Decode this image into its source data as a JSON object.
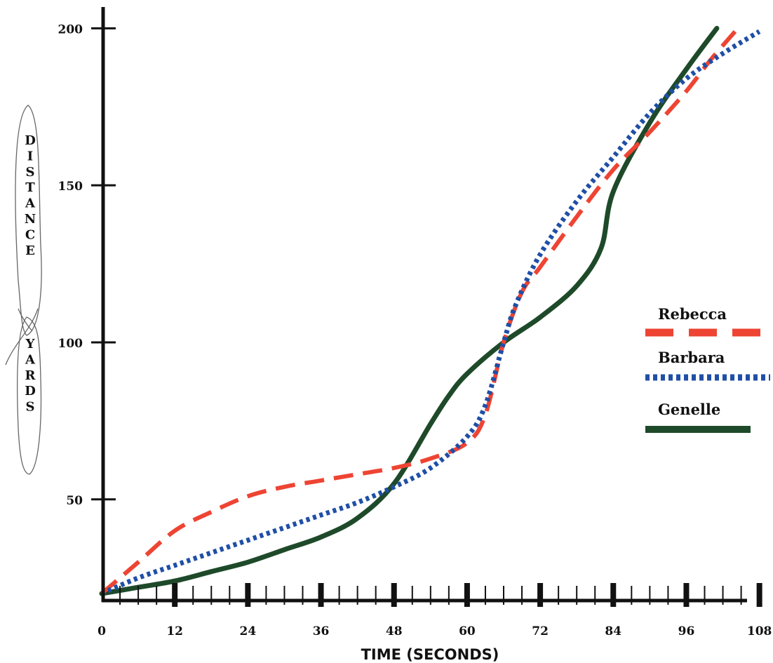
{
  "chart_data": {
    "type": "line",
    "title": "",
    "xlabel": "TIME (SECONDS)",
    "ylabel": "DISTANCE YARDS",
    "ylabel_words": [
      "DISTANCE",
      "YARDS"
    ],
    "xlim": [
      0,
      110
    ],
    "ylim": [
      18,
      205
    ],
    "x_ticks": [
      0,
      12,
      24,
      36,
      48,
      60,
      72,
      84,
      96,
      108
    ],
    "x_tick_labels": [
      "0",
      "12",
      "24",
      "36",
      "48",
      "60",
      "72",
      "84",
      "96",
      "108"
    ],
    "y_ticks": [
      50,
      100,
      150,
      200
    ],
    "y_tick_labels": [
      "50",
      "100",
      "150",
      "200"
    ],
    "grid": false,
    "legend_position": "right",
    "series": [
      {
        "name": "Rebecca",
        "color": "#ee4433",
        "style": "dashed",
        "x": [
          0,
          6,
          12,
          18,
          24,
          30,
          36,
          42,
          48,
          54,
          60,
          63,
          66,
          69,
          72,
          78,
          84,
          90,
          96,
          100,
          104
        ],
        "y": [
          20,
          30,
          40,
          46,
          51,
          54,
          56,
          58,
          60,
          63,
          68,
          77,
          100,
          116,
          124,
          140,
          155,
          167,
          180,
          190,
          199
        ]
      },
      {
        "name": "Barbara",
        "color": "#1f4fa6",
        "style": "dotted",
        "x": [
          0,
          6,
          12,
          18,
          24,
          30,
          36,
          42,
          48,
          54,
          60,
          63,
          66,
          68,
          72,
          78,
          84,
          90,
          96,
          102,
          108
        ],
        "y": [
          20,
          25,
          29,
          33,
          37,
          41,
          45,
          49,
          54,
          60,
          70,
          80,
          100,
          112,
          128,
          145,
          159,
          173,
          184,
          192,
          199
        ]
      },
      {
        "name": "Genelle",
        "color": "#1e4a2a",
        "style": "solid",
        "x": [
          0,
          6,
          12,
          18,
          24,
          30,
          36,
          42,
          48,
          54,
          57,
          60,
          66,
          72,
          78,
          82,
          84,
          90,
          96,
          101
        ],
        "y": [
          20,
          22,
          24,
          27,
          30,
          34,
          38,
          44,
          55,
          74,
          83,
          90,
          100,
          108,
          118,
          130,
          148,
          170,
          187,
          200
        ]
      }
    ]
  }
}
